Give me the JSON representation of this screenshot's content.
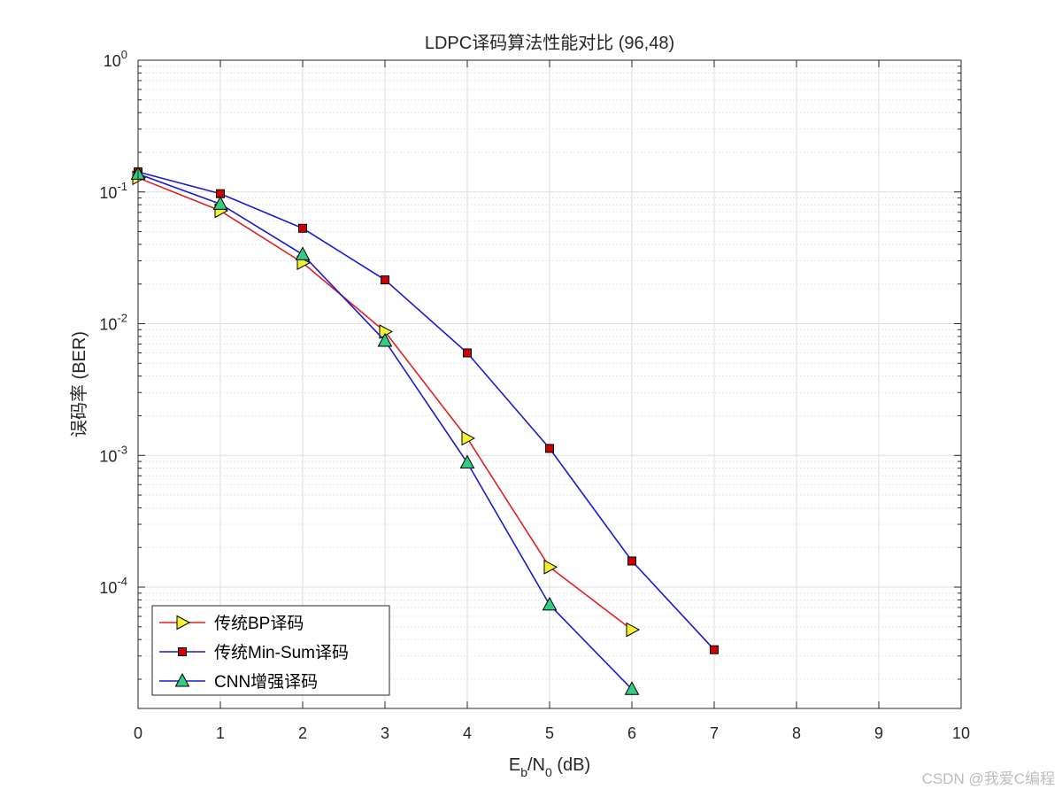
{
  "chart_data": {
    "type": "line",
    "title": "LDPC译码算法性能对比 (96,48)",
    "xlabel": {
      "main": "E",
      "sub1": "b",
      "mid": "/N",
      "sub2": "0",
      "tail": " (dB)"
    },
    "ylabel": "误码率 (BER)",
    "xlim": [
      0,
      10
    ],
    "ylim": [
      1.2e-05,
      1
    ],
    "yscale": "log",
    "grid": true,
    "xticks": [
      "0",
      "1",
      "2",
      "3",
      "4",
      "5",
      "6",
      "7",
      "8",
      "9",
      "10"
    ],
    "yticks": [
      {
        "base": "10",
        "exp": "0",
        "value": 1
      },
      {
        "base": "10",
        "exp": "-1",
        "value": 0.1
      },
      {
        "base": "10",
        "exp": "-2",
        "value": 0.01
      },
      {
        "base": "10",
        "exp": "-3",
        "value": 0.001
      },
      {
        "base": "10",
        "exp": "-4",
        "value": 0.0001
      }
    ],
    "legend_position": "bottom-left",
    "series": [
      {
        "name": "传统BP译码",
        "color": "#e02020",
        "marker": "triangle-right",
        "marker_color": "#f2f233",
        "x": [
          0,
          1,
          2,
          3,
          4,
          5,
          6
        ],
        "y": [
          0.128,
          0.072,
          0.029,
          0.0087,
          0.00135,
          0.000142,
          4.75e-05
        ]
      },
      {
        "name": "传统Min-Sum译码",
        "color": "#1a1ad0",
        "marker": "square",
        "marker_color": "#cc0000",
        "x": [
          0,
          1,
          2,
          3,
          4,
          5,
          6,
          7
        ],
        "y": [
          0.142,
          0.097,
          0.053,
          0.0215,
          0.006,
          0.00113,
          0.000158,
          3.35e-05
        ]
      },
      {
        "name": "CNN增强译码",
        "color": "#1a1ad0",
        "marker": "triangle-up",
        "marker_color": "#33cc80",
        "x": [
          0,
          1,
          2,
          3,
          4,
          5,
          6
        ],
        "y": [
          0.137,
          0.081,
          0.0335,
          0.0074,
          0.00088,
          7.35e-05,
          1.68e-05
        ]
      }
    ]
  },
  "watermark": "CSDN @我爱C编程"
}
